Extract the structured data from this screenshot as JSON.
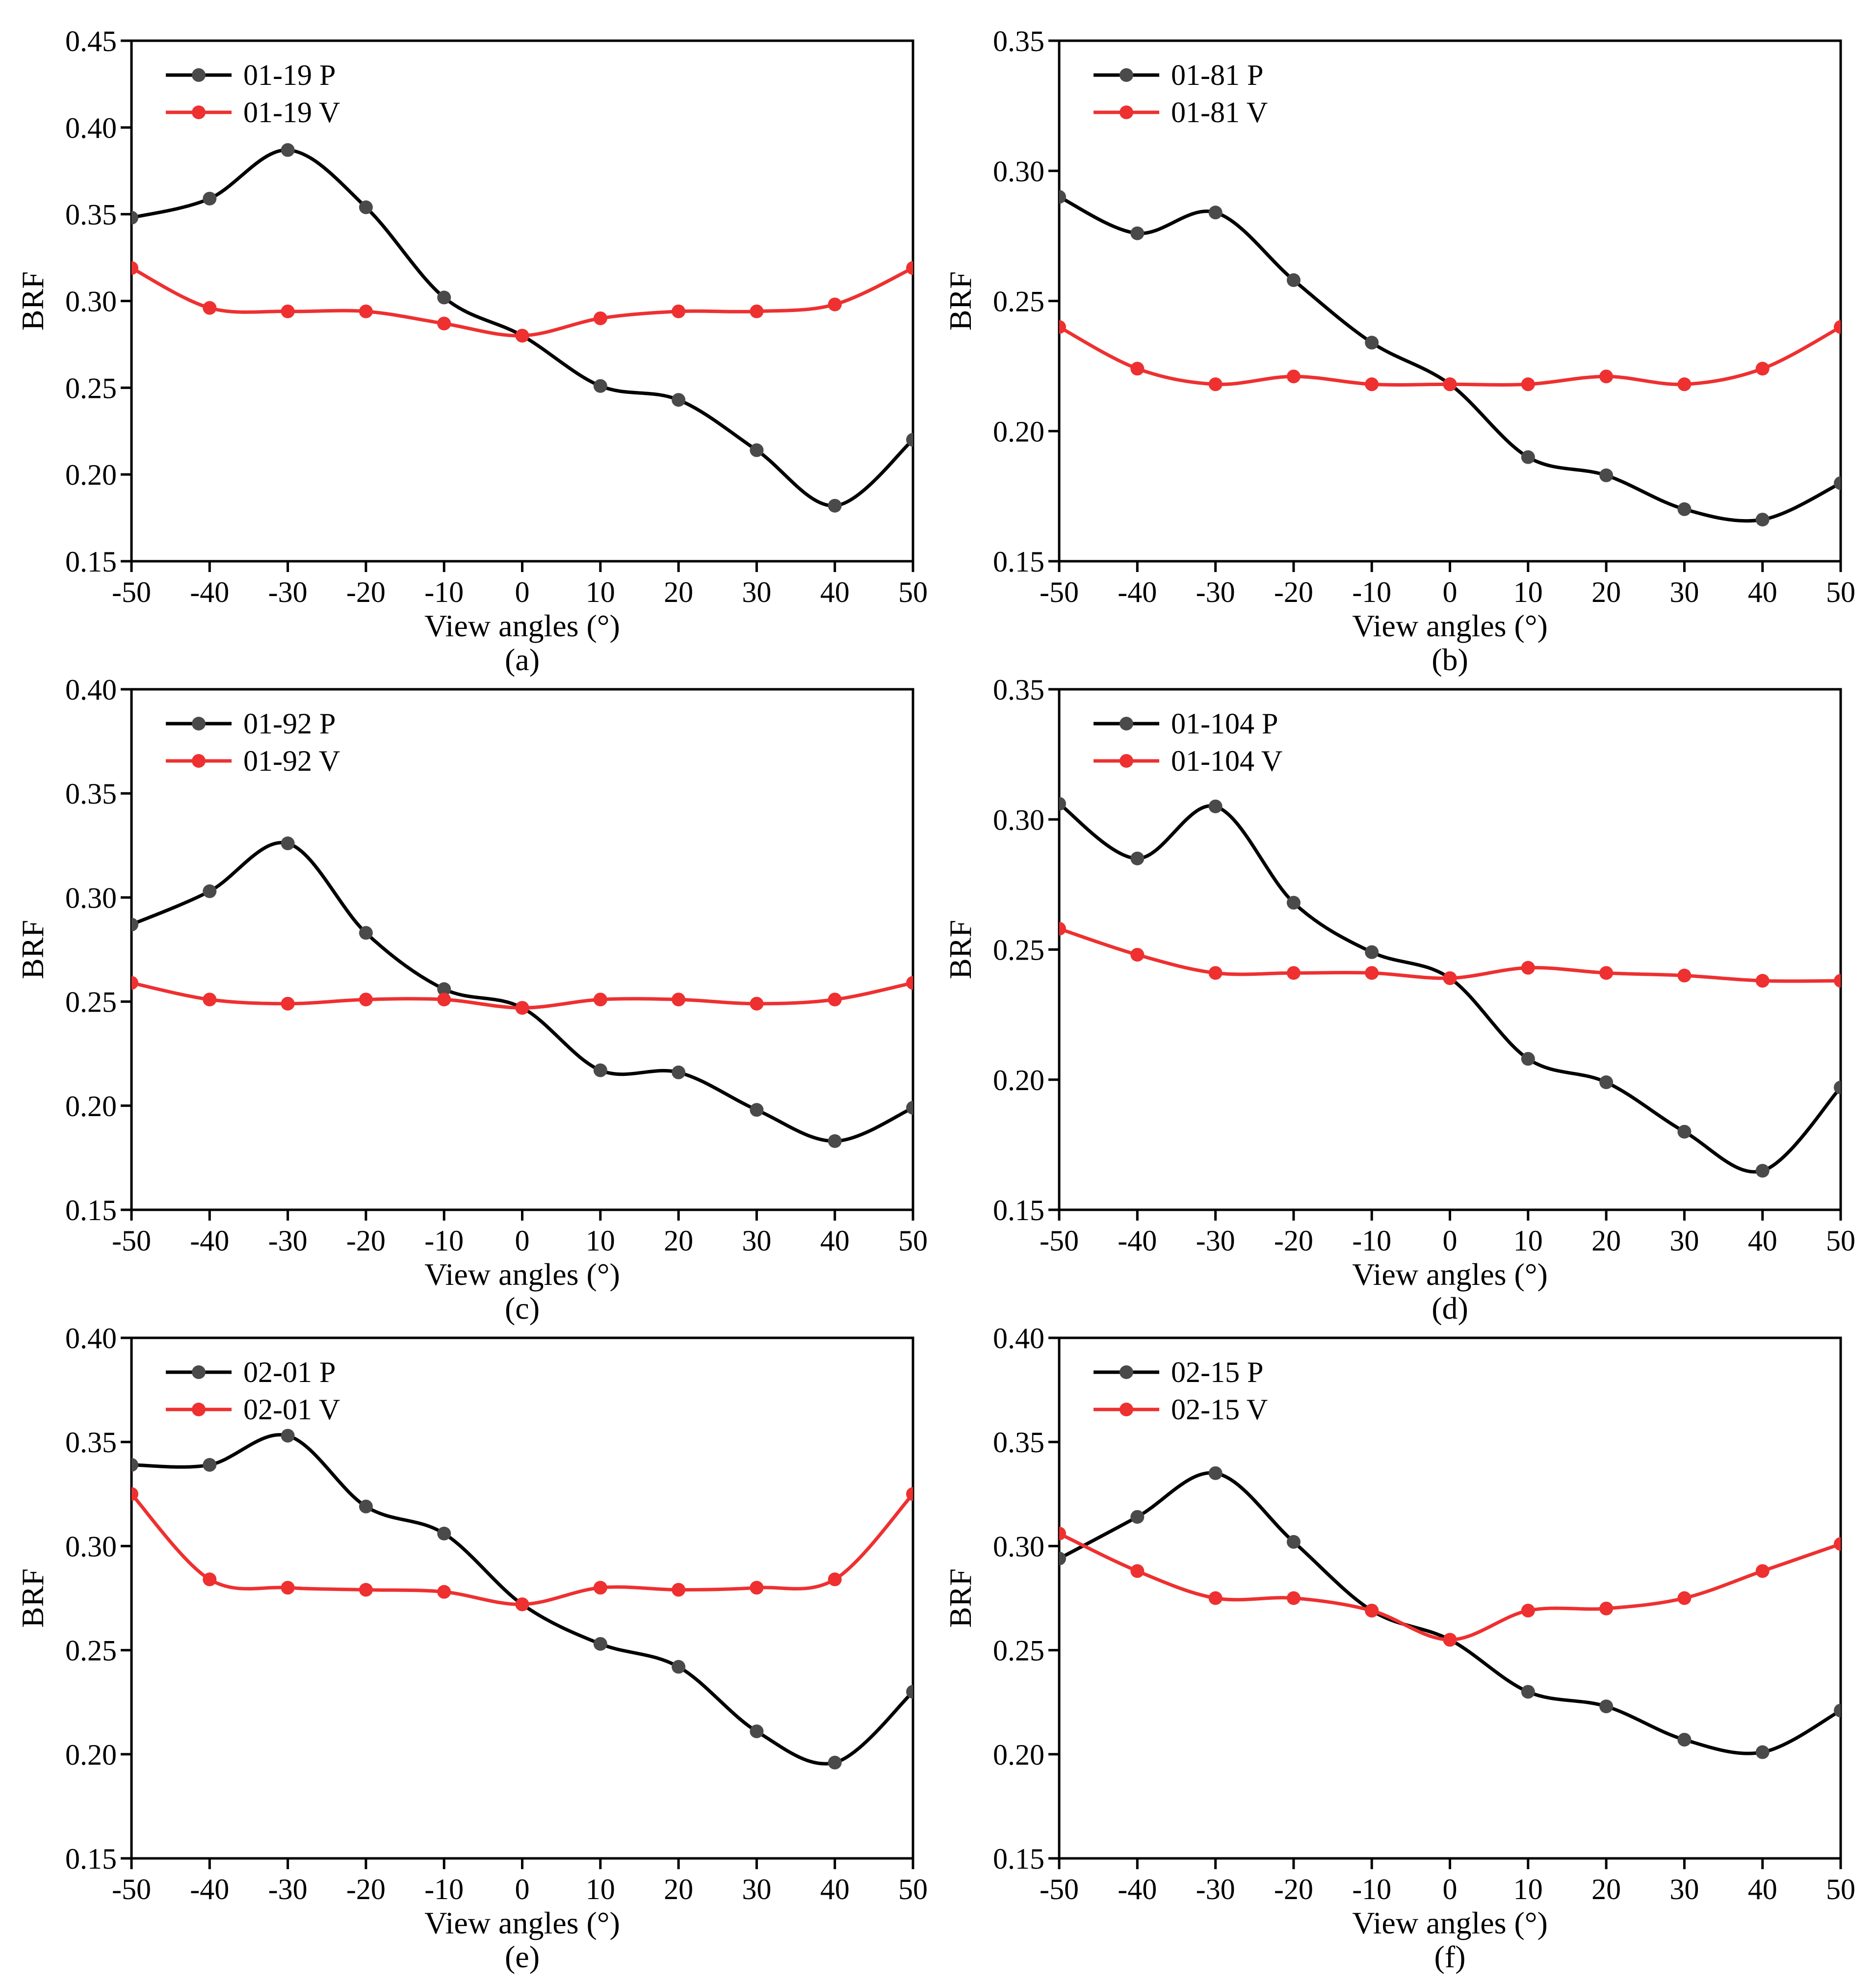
{
  "x_axis_label": "View angles (°)",
  "y_axis_label": "BRF",
  "chart_data": [
    {
      "type": "line",
      "panel_label": "(a)",
      "x": [
        -50,
        -40,
        -30,
        -20,
        -10,
        0,
        10,
        20,
        30,
        40,
        50
      ],
      "xticks": [
        "-50",
        "-40",
        "-30",
        "-20",
        "-10",
        "0",
        "10",
        "20",
        "30",
        "40",
        "50"
      ],
      "ylim": [
        0.15,
        0.45
      ],
      "yticks": [
        "0.15",
        "0.20",
        "0.25",
        "0.30",
        "0.35",
        "0.40",
        "0.45"
      ],
      "series": [
        {
          "name": "01-19 P",
          "color": "#000000",
          "marker_color": "#4a4a4a",
          "values": [
            0.348,
            0.359,
            0.387,
            0.354,
            0.302,
            0.28,
            0.251,
            0.243,
            0.214,
            0.182,
            0.22
          ]
        },
        {
          "name": "01-19 V",
          "color": "#ee3030",
          "marker_color": "#ee3030",
          "values": [
            0.319,
            0.296,
            0.294,
            0.294,
            0.287,
            0.28,
            0.29,
            0.294,
            0.294,
            0.298,
            0.319
          ]
        }
      ]
    },
    {
      "type": "line",
      "panel_label": "(b)",
      "x": [
        -50,
        -40,
        -30,
        -20,
        -10,
        0,
        10,
        20,
        30,
        40,
        50
      ],
      "xticks": [
        "-50",
        "-40",
        "-30",
        "-20",
        "-10",
        "0",
        "10",
        "20",
        "30",
        "40",
        "50"
      ],
      "ylim": [
        0.15,
        0.35
      ],
      "yticks": [
        "0.15",
        "0.20",
        "0.25",
        "0.30",
        "0.35"
      ],
      "series": [
        {
          "name": "01-81 P",
          "color": "#000000",
          "marker_color": "#4a4a4a",
          "values": [
            0.29,
            0.276,
            0.284,
            0.258,
            0.234,
            0.218,
            0.19,
            0.183,
            0.17,
            0.166,
            0.18
          ]
        },
        {
          "name": "01-81 V",
          "color": "#ee3030",
          "marker_color": "#ee3030",
          "values": [
            0.24,
            0.224,
            0.218,
            0.221,
            0.218,
            0.218,
            0.218,
            0.221,
            0.218,
            0.224,
            0.24
          ]
        }
      ]
    },
    {
      "type": "line",
      "panel_label": "(c)",
      "x": [
        -50,
        -40,
        -30,
        -20,
        -10,
        0,
        10,
        20,
        30,
        40,
        50
      ],
      "xticks": [
        "-50",
        "-40",
        "-30",
        "-20",
        "-10",
        "0",
        "10",
        "20",
        "30",
        "40",
        "50"
      ],
      "ylim": [
        0.15,
        0.4
      ],
      "yticks": [
        "0.15",
        "0.20",
        "0.25",
        "0.30",
        "0.35",
        "0.40"
      ],
      "series": [
        {
          "name": "01-92 P",
          "color": "#000000",
          "marker_color": "#4a4a4a",
          "values": [
            0.287,
            0.303,
            0.326,
            0.283,
            0.256,
            0.247,
            0.217,
            0.216,
            0.198,
            0.183,
            0.199
          ]
        },
        {
          "name": "01-92 V",
          "color": "#ee3030",
          "marker_color": "#ee3030",
          "values": [
            0.259,
            0.251,
            0.249,
            0.251,
            0.251,
            0.247,
            0.251,
            0.251,
            0.249,
            0.251,
            0.259
          ]
        }
      ]
    },
    {
      "type": "line",
      "panel_label": "(d)",
      "x": [
        -50,
        -40,
        -30,
        -20,
        -10,
        0,
        10,
        20,
        30,
        40,
        50
      ],
      "xticks": [
        "-50",
        "-40",
        "-30",
        "-20",
        "-10",
        "0",
        "10",
        "20",
        "30",
        "40",
        "50"
      ],
      "ylim": [
        0.15,
        0.35
      ],
      "yticks": [
        "0.15",
        "0.20",
        "0.25",
        "0.30",
        "0.35"
      ],
      "series": [
        {
          "name": "01-104 P",
          "color": "#000000",
          "marker_color": "#4a4a4a",
          "values": [
            0.306,
            0.285,
            0.305,
            0.268,
            0.249,
            0.239,
            0.208,
            0.199,
            0.18,
            0.165,
            0.197
          ]
        },
        {
          "name": "01-104 V",
          "color": "#ee3030",
          "marker_color": "#ee3030",
          "values": [
            0.258,
            0.248,
            0.241,
            0.241,
            0.241,
            0.239,
            0.243,
            0.241,
            0.24,
            0.238,
            0.238
          ]
        }
      ]
    },
    {
      "type": "line",
      "panel_label": "(e)",
      "x": [
        -50,
        -40,
        -30,
        -20,
        -10,
        0,
        10,
        20,
        30,
        40,
        50
      ],
      "xticks": [
        "-50",
        "-40",
        "-30",
        "-20",
        "-10",
        "0",
        "10",
        "20",
        "30",
        "40",
        "50"
      ],
      "ylim": [
        0.15,
        0.4
      ],
      "yticks": [
        "0.15",
        "0.20",
        "0.25",
        "0.30",
        "0.35",
        "0.40"
      ],
      "series": [
        {
          "name": "02-01 P",
          "color": "#000000",
          "marker_color": "#4a4a4a",
          "values": [
            0.339,
            0.339,
            0.353,
            0.319,
            0.306,
            0.272,
            0.253,
            0.242,
            0.211,
            0.196,
            0.23
          ]
        },
        {
          "name": "02-01 V",
          "color": "#ee3030",
          "marker_color": "#ee3030",
          "values": [
            0.325,
            0.284,
            0.28,
            0.279,
            0.278,
            0.272,
            0.28,
            0.279,
            0.28,
            0.284,
            0.325
          ]
        }
      ]
    },
    {
      "type": "line",
      "panel_label": "(f)",
      "x": [
        -50,
        -40,
        -30,
        -20,
        -10,
        0,
        10,
        20,
        30,
        40,
        50
      ],
      "xticks": [
        "-50",
        "-40",
        "-30",
        "-20",
        "-10",
        "0",
        "10",
        "20",
        "30",
        "40",
        "50"
      ],
      "ylim": [
        0.15,
        0.4
      ],
      "yticks": [
        "0.15",
        "0.20",
        "0.25",
        "0.30",
        "0.35",
        "0.40"
      ],
      "series": [
        {
          "name": "02-15 P",
          "color": "#000000",
          "marker_color": "#4a4a4a",
          "values": [
            0.294,
            0.314,
            0.335,
            0.302,
            0.269,
            0.255,
            0.23,
            0.223,
            0.207,
            0.201,
            0.221
          ]
        },
        {
          "name": "02-15 V",
          "color": "#ee3030",
          "marker_color": "#ee3030",
          "values": [
            0.306,
            0.288,
            0.275,
            0.275,
            0.269,
            0.255,
            0.269,
            0.27,
            0.275,
            0.288,
            0.301
          ]
        }
      ]
    }
  ]
}
